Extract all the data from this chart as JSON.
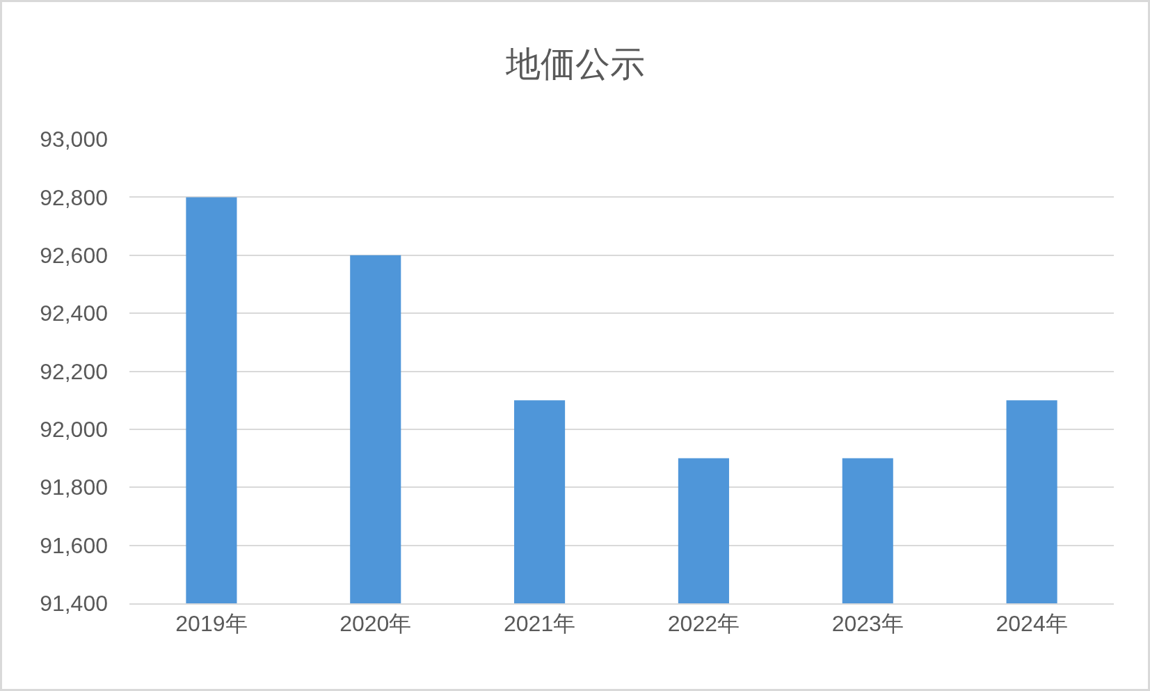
{
  "chart_data": {
    "type": "bar",
    "title": "地価公示",
    "categories": [
      "2019年",
      "2020年",
      "2021年",
      "2022年",
      "2023年",
      "2024年"
    ],
    "values": [
      92800,
      92600,
      92100,
      91900,
      91900,
      92100
    ],
    "color": "#4f96d9",
    "ylim": [
      91400,
      93000
    ],
    "yticks": [
      {
        "value": 91400,
        "label": "91,400"
      },
      {
        "value": 91600,
        "label": "91,600"
      },
      {
        "value": 91800,
        "label": "91,800"
      },
      {
        "value": 92000,
        "label": "92,000"
      },
      {
        "value": 92200,
        "label": "92,200"
      },
      {
        "value": 92400,
        "label": "92,400"
      },
      {
        "value": 92600,
        "label": "92,600"
      },
      {
        "value": 92800,
        "label": "92,800"
      },
      {
        "value": 93000,
        "label": "93,000"
      }
    ],
    "grid": "y"
  }
}
